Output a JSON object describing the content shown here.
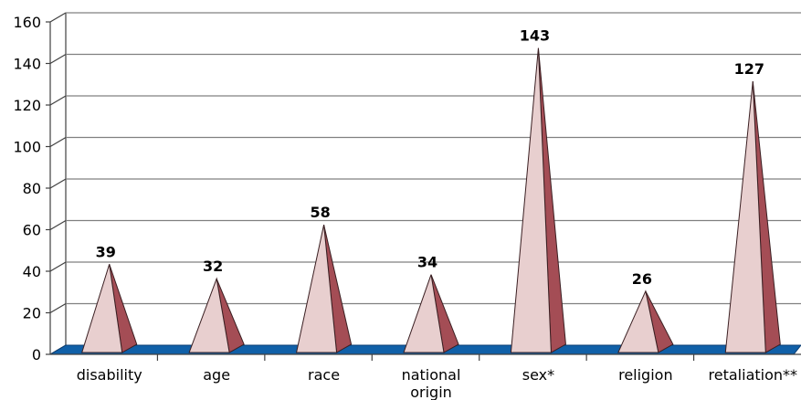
{
  "chart_data": {
    "type": "bar",
    "categories": [
      [
        "disability"
      ],
      [
        "age"
      ],
      [
        "race"
      ],
      [
        "national",
        "origin"
      ],
      [
        "sex*"
      ],
      [
        "religion"
      ],
      [
        "retaliation**"
      ]
    ],
    "values": [
      39,
      32,
      58,
      34,
      143,
      26,
      127
    ],
    "data_labels": [
      "39",
      "32",
      "58",
      "34",
      "143",
      "26",
      "127"
    ],
    "title": "",
    "xlabel": "",
    "ylabel": "",
    "ylim": [
      0,
      160
    ],
    "yticks": [
      "0",
      "20",
      "40",
      "60",
      "80",
      "100",
      "120",
      "140",
      "160"
    ],
    "grid": true,
    "legend": "none",
    "style": "3d-pyramid",
    "colors": {
      "pyramid_front": "#e8cfcf",
      "pyramid_side": "#a44d55",
      "floor": "#1060a8",
      "gridline": "#808080",
      "wall": "#ffffff"
    }
  }
}
